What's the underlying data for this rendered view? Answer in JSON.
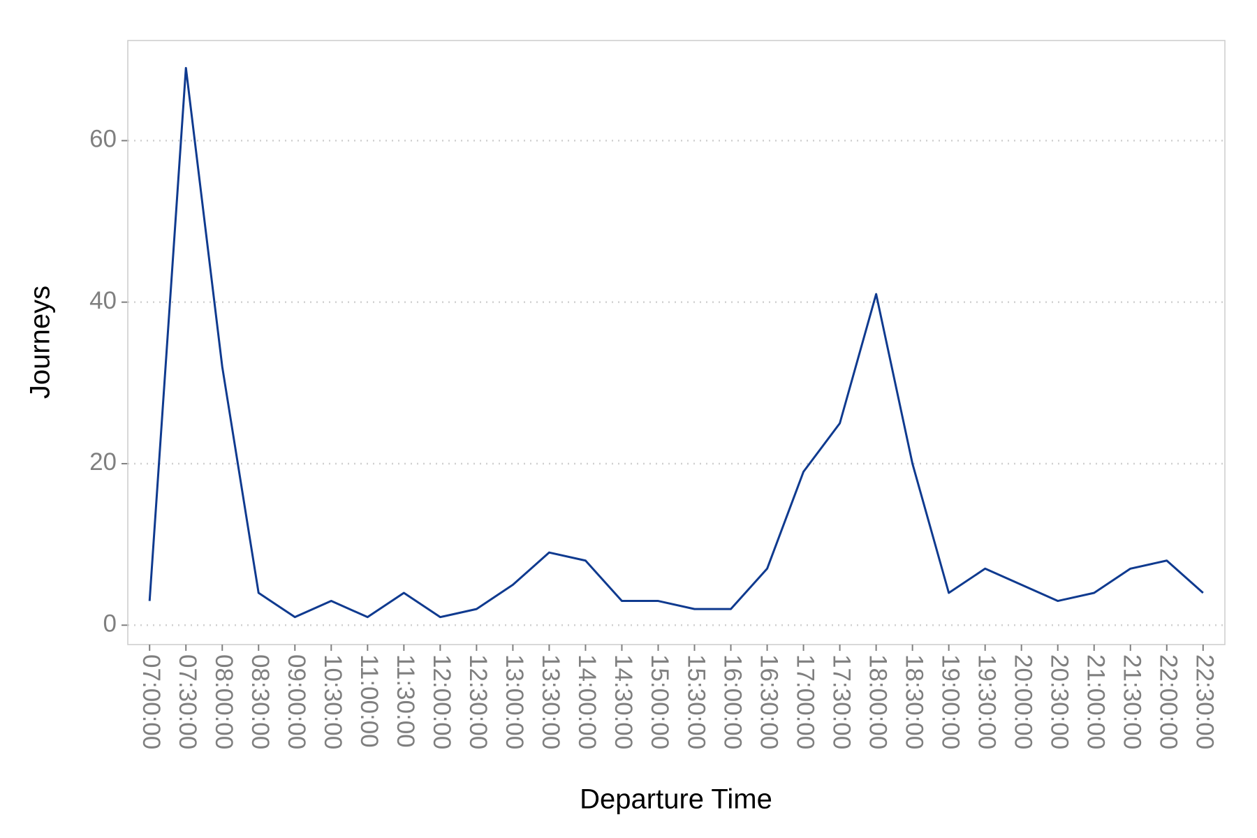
{
  "chart_data": {
    "type": "line",
    "x_label": "Departure Time",
    "y_label": "Journeys",
    "categories": [
      "07:00:00",
      "07:30:00",
      "08:00:00",
      "08:30:00",
      "09:00:00",
      "10:30:00",
      "11:00:00",
      "11:30:00",
      "12:00:00",
      "12:30:00",
      "13:00:00",
      "13:30:00",
      "14:00:00",
      "14:30:00",
      "15:00:00",
      "15:30:00",
      "16:00:00",
      "16:30:00",
      "17:00:00",
      "17:30:00",
      "18:00:00",
      "18:30:00",
      "19:00:00",
      "19:30:00",
      "20:00:00",
      "20:30:00",
      "21:00:00",
      "21:30:00",
      "22:00:00",
      "22:30:00"
    ],
    "values": [
      3,
      69,
      32,
      4,
      1,
      3,
      1,
      4,
      1,
      2,
      5,
      9,
      8,
      3,
      3,
      2,
      2,
      7,
      19,
      25,
      41,
      20,
      4,
      7,
      5,
      3,
      4,
      7,
      8,
      4
    ],
    "color": "#0f3a8f",
    "ylim": [
      -2.4,
      72.4
    ],
    "yticks": [
      0,
      20,
      40,
      60
    ],
    "grid": true
  }
}
